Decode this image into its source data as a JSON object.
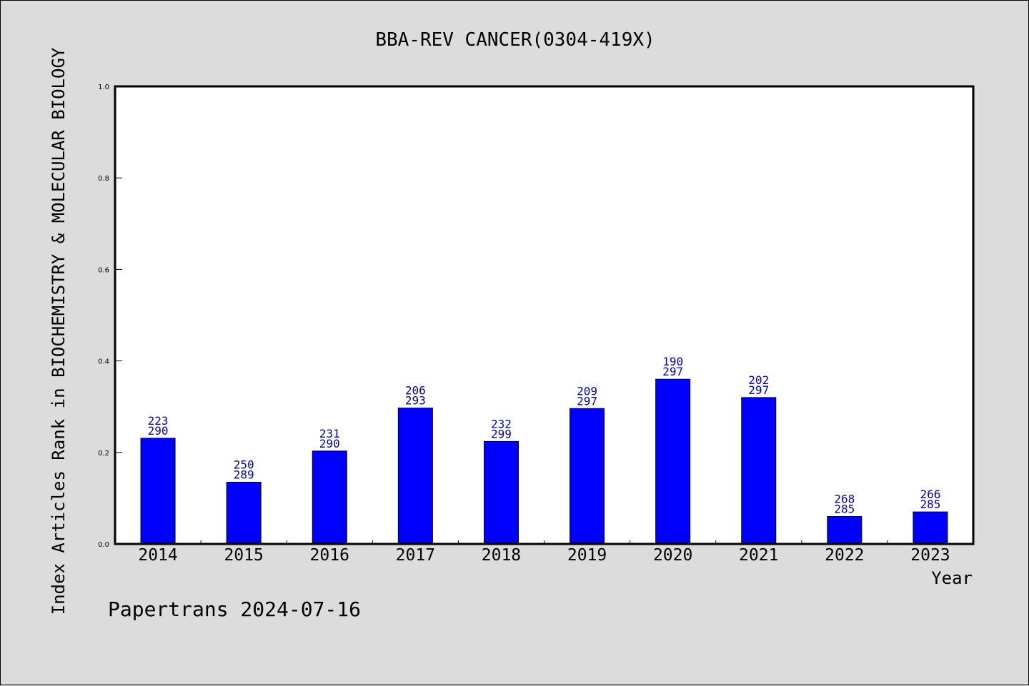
{
  "chart_data": {
    "type": "bar",
    "title": "BBA-REV CANCER(0304-419X)",
    "xlabel": "Year",
    "ylabel": "Index Articles Rank in BIOCHEMISTRY & MOLECULAR BIOLOGY",
    "ylim": [
      0,
      1.0
    ],
    "yticks": [
      "0.0",
      "0.2",
      "0.4",
      "0.6",
      "0.8",
      "1.0"
    ],
    "categories": [
      "2014",
      "2015",
      "2016",
      "2017",
      "2018",
      "2019",
      "2020",
      "2021",
      "2022",
      "2023"
    ],
    "values": [
      0.231,
      0.135,
      0.203,
      0.297,
      0.224,
      0.296,
      0.36,
      0.32,
      0.06,
      0.07
    ],
    "labels_top": [
      "223",
      "250",
      "231",
      "206",
      "232",
      "209",
      "190",
      "202",
      "268",
      "266"
    ],
    "labels_bottom": [
      "290",
      "289",
      "290",
      "293",
      "299",
      "297",
      "297",
      "297",
      "285",
      "285"
    ],
    "bar_color": "#0000ff",
    "label_color": "#0000cc",
    "grid": false,
    "legend": "none"
  },
  "footer": "Papertrans 2024-07-16",
  "colors": {
    "background": "#dcdcdc",
    "plot_background": "#ffffff"
  }
}
